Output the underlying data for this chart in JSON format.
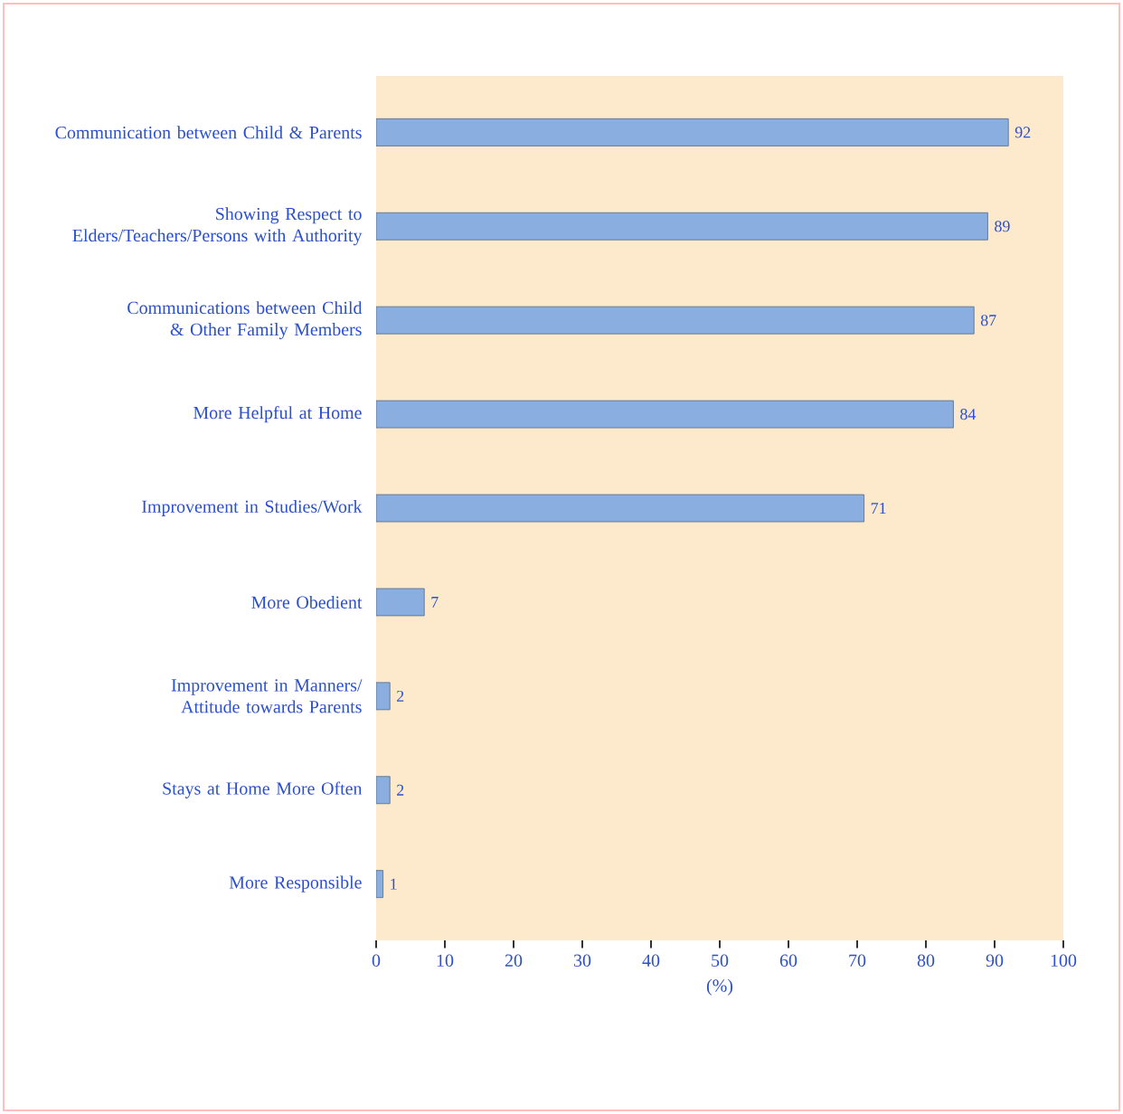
{
  "chart_data": {
    "type": "bar",
    "orientation": "horizontal",
    "xlabel": "(%)",
    "categories": [
      "Communication between Child & Parents",
      "Showing Respect to Elders/Teachers/Persons with Authority",
      "Communications between Child & Other Family Members",
      "More Helpful at Home",
      "Improvement in Studies/Work",
      "More Obedient",
      "Improvement in Manners/ Attitude towards Parents",
      "Stays at Home More Often",
      "More Responsible"
    ],
    "values": [
      92,
      89,
      87,
      84,
      71,
      7,
      2,
      2,
      1
    ],
    "color": "#8aaee0",
    "data_labels": true,
    "xlim": [
      0,
      100
    ],
    "xticks": [
      0,
      10,
      20,
      30,
      40,
      50,
      60,
      70,
      80,
      90,
      100
    ]
  }
}
